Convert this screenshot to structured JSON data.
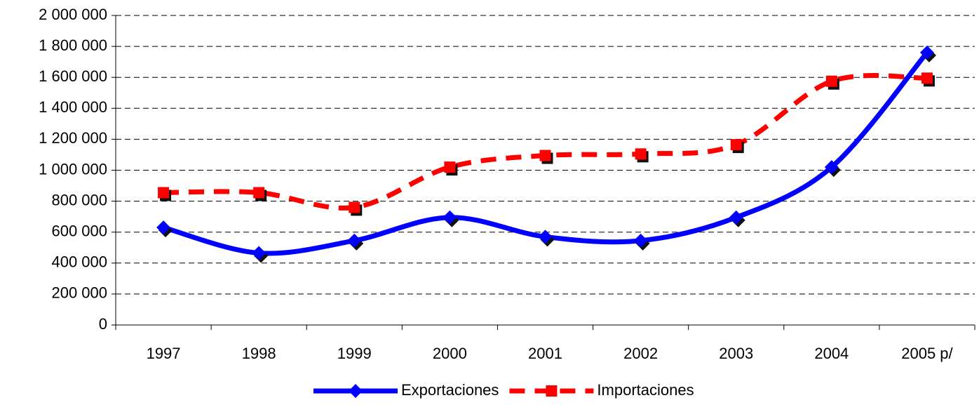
{
  "chart_data": {
    "type": "line",
    "categories": [
      "1997",
      "1998",
      "1999",
      "2000",
      "2001",
      "2002",
      "2003",
      "2004",
      "2005 p/"
    ],
    "series": [
      {
        "name": "Exportaciones",
        "color": "#0000ff",
        "marker": "diamond",
        "dash": false,
        "values": [
          630000,
          465000,
          545000,
          695000,
          570000,
          545000,
          695000,
          1020000,
          1760000
        ]
      },
      {
        "name": "Importaciones",
        "color": "#ff0000",
        "marker": "square",
        "dash": true,
        "values": [
          855000,
          855000,
          760000,
          1020000,
          1095000,
          1105000,
          1165000,
          1575000,
          1595000
        ]
      }
    ],
    "ylim": [
      0,
      2000000
    ],
    "yticks": [
      0,
      {
        "value": 200000,
        "label": "200 000"
      },
      {
        "value": 400000,
        "label": "400 000"
      },
      {
        "value": 600000,
        "label": "600 000"
      },
      {
        "value": 800000,
        "label": "800 000"
      },
      {
        "value": 1000000,
        "label": "1 000 000"
      },
      {
        "value": 1200000,
        "label": "1 200 000"
      },
      {
        "value": 1400000,
        "label": "1 400 000"
      },
      {
        "value": 1600000,
        "label": "1 600 000"
      },
      {
        "value": 1800000,
        "label": "1 800 000"
      },
      {
        "value": 2000000,
        "label": "2 000 000"
      }
    ],
    "grid": true,
    "legend": "bottom"
  }
}
